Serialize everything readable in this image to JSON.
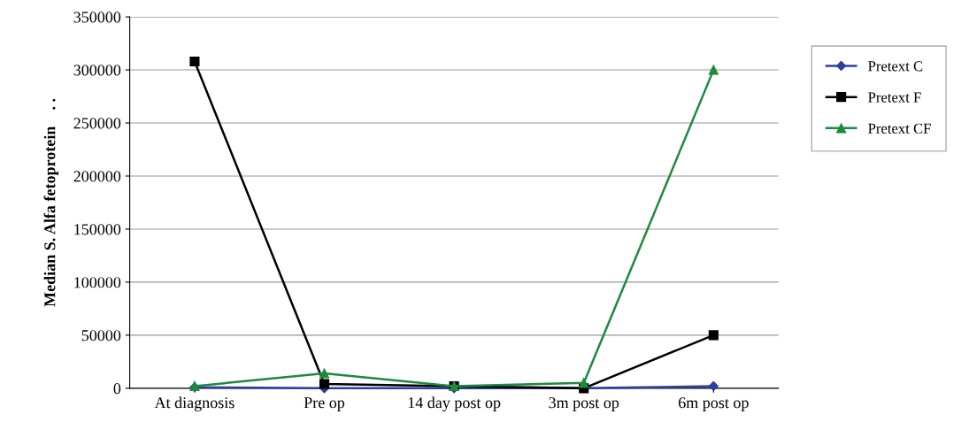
{
  "chart_data": {
    "type": "line",
    "ylabel": "Median S. Alfa fetoprotein    . .",
    "categories": [
      "At diagnosis",
      "Pre op",
      "14 day post op",
      "3m post op",
      "6m post op"
    ],
    "series": [
      {
        "name": "Pretext C",
        "color": "#2e3f9e",
        "marker": "diamond",
        "values": [
          1000,
          0,
          0,
          0,
          2000
        ]
      },
      {
        "name": "Pretext F",
        "color": "#000000",
        "marker": "square",
        "values": [
          308000,
          4000,
          2000,
          0,
          50000
        ]
      },
      {
        "name": "Pretext CF",
        "color": "#1e8a3c",
        "marker": "triangle",
        "values": [
          2000,
          14000,
          2000,
          5000,
          300000
        ]
      }
    ],
    "ylim": [
      0,
      350000
    ],
    "yticks": [
      0,
      50000,
      100000,
      150000,
      200000,
      250000,
      300000,
      350000
    ],
    "grid": "y",
    "legend": "right",
    "line_style": "solid"
  }
}
